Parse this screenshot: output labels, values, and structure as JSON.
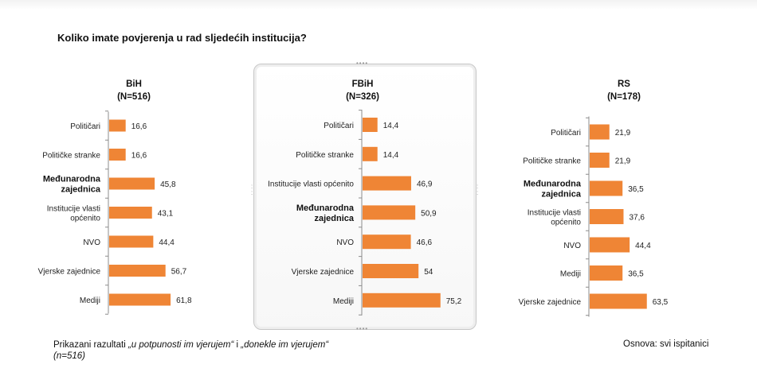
{
  "question": "Koliko imate povjerenja u rad sljedećih institucija?",
  "footnote": {
    "prefix": "Prikazani razultati ",
    "em1": "„u potpunosti im vjerujem“",
    "mid": " i ",
    "em2": "„donekle im vjerujem“",
    "line2": "(n=516)"
  },
  "basis": "Osnova: svi ispitanici",
  "chart_data": [
    {
      "type": "bar",
      "orientation": "horizontal",
      "title": "BiH",
      "subtitle": "(N=516)",
      "categories": [
        "Političari",
        "Političke stranke",
        "Međunarodna|zajednica",
        "Institucije vlasti|općenito",
        "NVO",
        "Vjerske zajednice",
        "Mediji"
      ],
      "values": [
        16.6,
        16.6,
        45.8,
        43.1,
        44.4,
        56.7,
        61.8
      ],
      "labels": [
        "16,6",
        "16,6",
        "45,8",
        "43,1",
        "44,4",
        "56,7",
        "61,8"
      ],
      "bold": [
        false,
        false,
        true,
        false,
        false,
        false,
        false
      ],
      "xlim": [
        0,
        100
      ],
      "bar_color": "#ef8535"
    },
    {
      "type": "bar",
      "orientation": "horizontal",
      "title": "FBiH",
      "subtitle": "(N=326)",
      "categories": [
        "Političari",
        "Političke stranke",
        "Institucije vlasti općenito",
        "Međunarodna|zajednica",
        "NVO",
        "Vjerske zajednice",
        "Mediji"
      ],
      "values": [
        14.4,
        14.4,
        46.9,
        50.9,
        46.6,
        54,
        75.2
      ],
      "labels": [
        "14,4",
        "14,4",
        "46,9",
        "50,9",
        "46,6",
        "54",
        "75,2"
      ],
      "bold": [
        false,
        false,
        false,
        true,
        false,
        false,
        false
      ],
      "xlim": [
        0,
        100
      ],
      "bar_color": "#ef8535"
    },
    {
      "type": "bar",
      "orientation": "horizontal",
      "title": "RS",
      "subtitle": "(N=178)",
      "categories": [
        "Političari",
        "Političke stranke",
        "Međunarodna|zajednica",
        "Institucije vlasti|općenito",
        "NVO",
        "Mediji",
        "Vjerske zajednice"
      ],
      "values": [
        21.9,
        21.9,
        36.5,
        37.6,
        44.4,
        36.5,
        63.5
      ],
      "labels": [
        "21,9",
        "21,9",
        "36,5",
        "37,6",
        "44,4",
        "36,5",
        "63,5"
      ],
      "bold": [
        false,
        false,
        true,
        false,
        false,
        false,
        false
      ],
      "xlim": [
        0,
        100
      ],
      "bar_color": "#ef8535"
    }
  ]
}
